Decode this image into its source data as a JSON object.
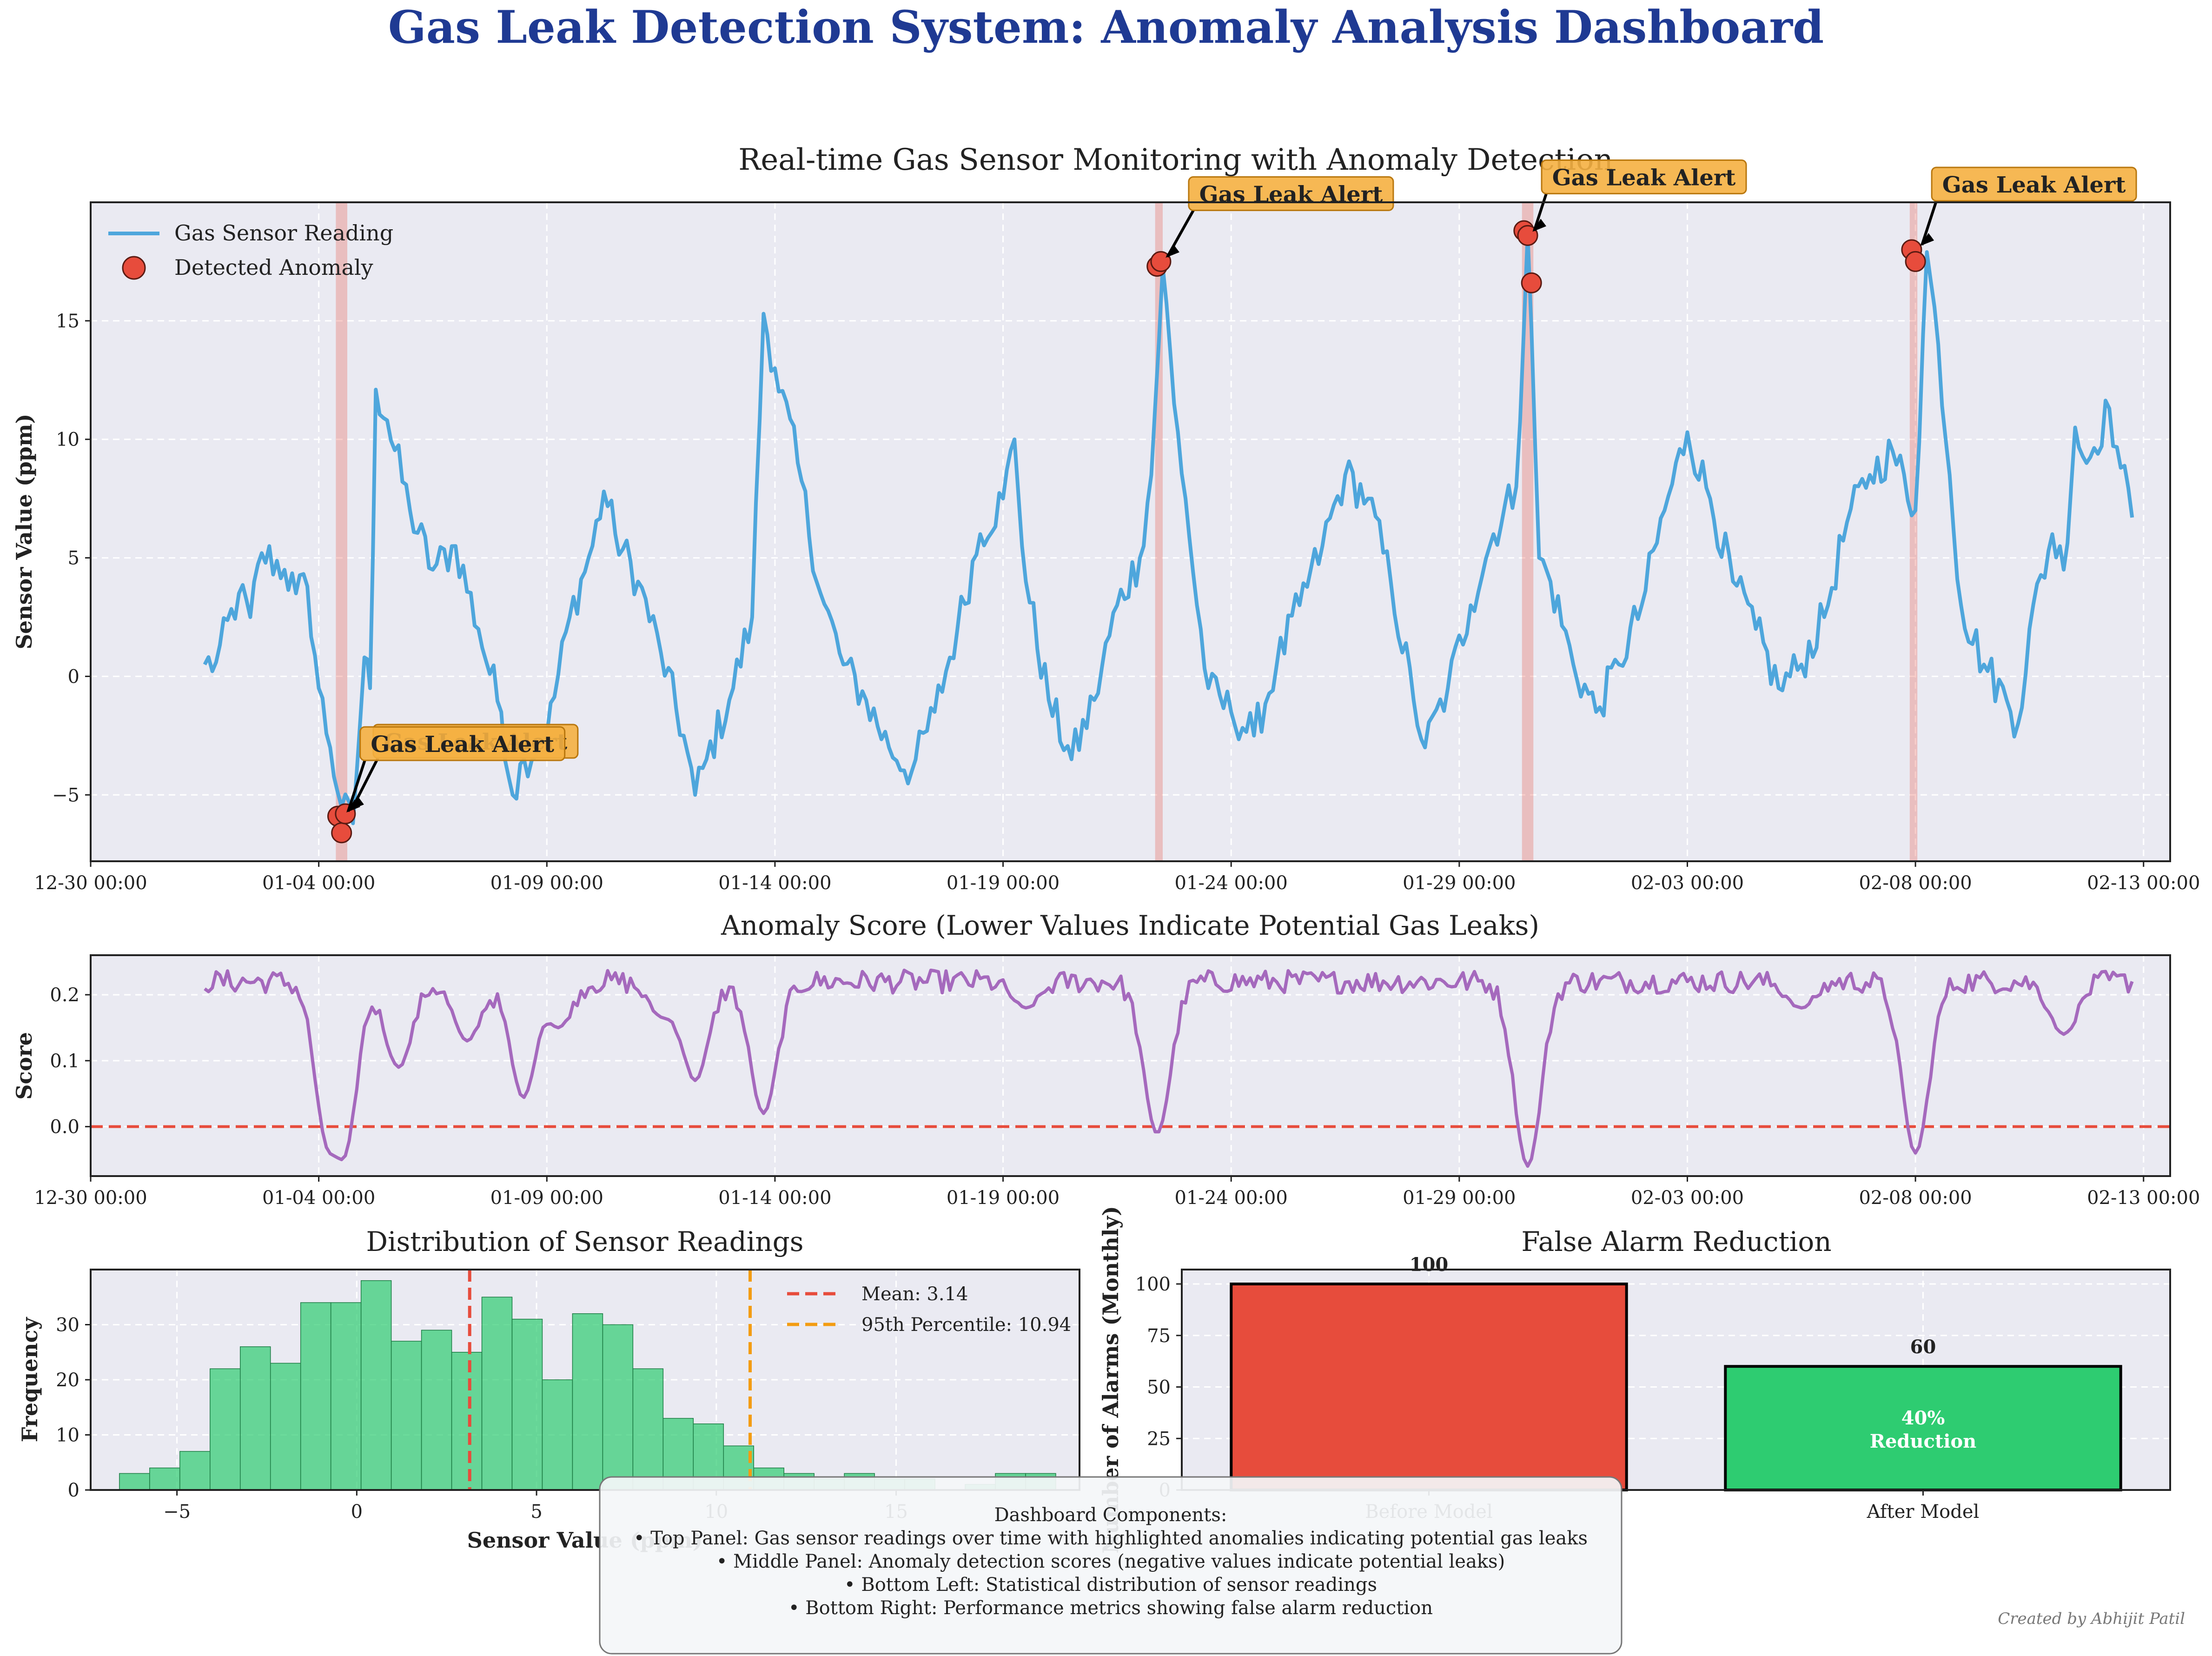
{
  "figure": {
    "suptitle": "Gas Leak Detection System: Anomaly Analysis Dashboard",
    "credit": "Created by Abhijit Patil",
    "title_color": "#1f3a93",
    "info_box": {
      "heading": "Dashboard Components:",
      "lines": [
        "• Top Panel: Gas sensor readings over time with highlighted anomalies indicating potential gas leaks",
        "• Middle Panel: Anomaly detection scores (negative values indicate potential leaks)",
        "• Bottom Left: Statistical distribution of sensor readings",
        "• Bottom Right: Performance metrics showing false alarm reduction"
      ]
    }
  },
  "chart_data": [
    {
      "id": "sensor",
      "type": "line",
      "title": "Real-time Gas Sensor Monitoring with Anomaly Detection",
      "xlabel": "",
      "ylabel": "Sensor Value (ppm)",
      "x_start": "2024-01-01 12:00",
      "x_end": "2024-02-11 12:00",
      "xlim": [
        "12-30 00:00",
        "02-13 14:00"
      ],
      "xticks": [
        "12-30 00:00",
        "01-04 00:00",
        "01-09 00:00",
        "01-14 00:00",
        "01-19 00:00",
        "01-24 00:00",
        "01-29 00:00",
        "02-03 00:00",
        "02-08 00:00",
        "02-13 00:00"
      ],
      "ylim": [
        -7.8,
        20
      ],
      "yticks": [
        -5,
        0,
        5,
        10,
        15
      ],
      "grid": true,
      "legend": {
        "position": "top-left",
        "entries": [
          "Gas Sensor Reading",
          "Detected Anomaly"
        ]
      },
      "series": [
        {
          "name": "Gas Sensor Reading",
          "color": "#4ea6dc",
          "key_points": [
            [
              "01-01 12:00",
              0.5
            ],
            [
              "01-01 18:00",
              0.6
            ],
            [
              "01-02 06:00",
              3.5
            ],
            [
              "01-02 12:00",
              2.5
            ],
            [
              "01-02 18:00",
              5.2
            ],
            [
              "01-03 06:00",
              4.5
            ],
            [
              "01-03 12:00",
              3.5
            ],
            [
              "01-03 18:00",
              3.8
            ],
            [
              "01-04 00:00",
              -0.5
            ],
            [
              "01-04 06:00",
              -3.0
            ],
            [
              "01-04 12:00",
              -5.5
            ],
            [
              "01-04 18:00",
              -6.2
            ],
            [
              "01-05 00:00",
              0.8
            ],
            [
              "01-05 03:00",
              -0.5
            ],
            [
              "01-05 06:00",
              12.1
            ],
            [
              "01-05 12:00",
              10.8
            ],
            [
              "01-06 00:00",
              7.0
            ],
            [
              "01-06 12:00",
              4.5
            ],
            [
              "01-07 00:00",
              5.5
            ],
            [
              "01-07 12:00",
              2.0
            ],
            [
              "01-08 00:00",
              -1.5
            ],
            [
              "01-08 06:00",
              -5.0
            ],
            [
              "01-08 12:00",
              -3.5
            ],
            [
              "01-09 00:00",
              -2.5
            ],
            [
              "01-09 12:00",
              2.5
            ],
            [
              "01-10 00:00",
              5.5
            ],
            [
              "01-10 06:00",
              7.8
            ],
            [
              "01-10 12:00",
              6.0
            ],
            [
              "01-11 00:00",
              4.0
            ],
            [
              "01-11 12:00",
              1.0
            ],
            [
              "01-12 00:00",
              -2.5
            ],
            [
              "01-12 06:00",
              -5.0
            ],
            [
              "01-12 12:00",
              -3.5
            ],
            [
              "01-13 00:00",
              -1.0
            ],
            [
              "01-13 12:00",
              2.5
            ],
            [
              "01-13 18:00",
              15.3
            ],
            [
              "01-14 00:00",
              13.0
            ],
            [
              "01-14 12:00",
              9.0
            ],
            [
              "01-15 00:00",
              3.5
            ],
            [
              "01-15 12:00",
              0.5
            ],
            [
              "01-16 00:00",
              -1.0
            ],
            [
              "01-16 12:00",
              -3.0
            ],
            [
              "01-17 00:00",
              -4.0
            ],
            [
              "01-17 12:00",
              -1.5
            ],
            [
              "01-18 00:00",
              2.0
            ],
            [
              "01-18 12:00",
              6.0
            ],
            [
              "01-19 00:00",
              7.5
            ],
            [
              "01-19 06:00",
              10.0
            ],
            [
              "01-19 12:00",
              4.0
            ],
            [
              "01-20 00:00",
              -1.0
            ],
            [
              "01-20 12:00",
              -3.5
            ],
            [
              "01-21 00:00",
              -1.0
            ],
            [
              "01-21 12:00",
              3.0
            ],
            [
              "01-22 00:00",
              5.0
            ],
            [
              "01-22 06:00",
              8.5
            ],
            [
              "01-22 12:00",
              17.3
            ],
            [
              "01-22 18:00",
              11.5
            ],
            [
              "01-23 00:00",
              7.5
            ],
            [
              "01-23 06:00",
              3.0
            ],
            [
              "01-23 12:00",
              -0.5
            ],
            [
              "01-24 00:00",
              -1.5
            ],
            [
              "01-24 12:00",
              -2.5
            ],
            [
              "01-25 00:00",
              0.5
            ],
            [
              "01-25 12:00",
              3.0
            ],
            [
              "01-26 00:00",
              5.5
            ],
            [
              "01-26 12:00",
              8.5
            ],
            [
              "01-27 00:00",
              7.5
            ],
            [
              "01-27 12:00",
              4.0
            ],
            [
              "01-28 00:00",
              -1.0
            ],
            [
              "01-28 06:00",
              -3.0
            ],
            [
              "01-28 18:00",
              -0.5
            ],
            [
              "01-29 06:00",
              3.0
            ],
            [
              "01-29 18:00",
              6.0
            ],
            [
              "01-30 06:00",
              8.0
            ],
            [
              "01-30 12:00",
              18.7
            ],
            [
              "01-30 18:00",
              5.0
            ],
            [
              "01-31 00:00",
              4.0
            ],
            [
              "01-31 12:00",
              0.5
            ],
            [
              "02-01 00:00",
              -1.5
            ],
            [
              "02-01 12:00",
              0.5
            ],
            [
              "02-02 00:00",
              3.0
            ],
            [
              "02-02 12:00",
              7.0
            ],
            [
              "02-03 00:00",
              10.3
            ],
            [
              "02-03 12:00",
              7.5
            ],
            [
              "02-04 00:00",
              4.0
            ],
            [
              "02-04 12:00",
              2.0
            ],
            [
              "02-05 00:00",
              -0.5
            ],
            [
              "02-05 12:00",
              0.5
            ],
            [
              "02-06 00:00",
              2.5
            ],
            [
              "02-06 12:00",
              6.5
            ],
            [
              "02-07 00:00",
              8.5
            ],
            [
              "02-07 12:00",
              9.5
            ],
            [
              "02-08 00:00",
              7.0
            ],
            [
              "02-08 06:00",
              17.9
            ],
            [
              "02-08 12:00",
              14.0
            ],
            [
              "02-08 18:00",
              8.5
            ],
            [
              "02-09 00:00",
              3.0
            ],
            [
              "02-09 12:00",
              0.5
            ],
            [
              "02-10 00:00",
              -1.0
            ],
            [
              "02-10 06:00",
              -2.0
            ],
            [
              "02-10 12:00",
              2.0
            ],
            [
              "02-11 00:00",
              6.0
            ],
            [
              "02-11 06:00",
              4.5
            ],
            [
              "02-11 12:00",
              10.5
            ],
            [
              "02-11 18:00",
              9.0
            ],
            [
              "02-12 06:00",
              11.3
            ],
            [
              "02-12 12:00",
              8.8
            ],
            [
              "02-12 18:00",
              6.7
            ]
          ]
        },
        {
          "name": "Detected Anomaly",
          "color": "#e74c3c",
          "points": [
            [
              "01-04 10:00",
              -5.9
            ],
            [
              "01-04 12:00",
              -6.6
            ],
            [
              "01-04 14:00",
              -5.8
            ],
            [
              "01-22 09:00",
              17.3
            ],
            [
              "01-22 11:00",
              17.5
            ],
            [
              "01-30 10:00",
              18.8
            ],
            [
              "01-30 12:00",
              18.6
            ],
            [
              "01-30 14:00",
              16.6
            ],
            [
              "02-07 22:00",
              18.0
            ],
            [
              "02-08 00:00",
              17.5
            ]
          ]
        }
      ],
      "highlight_bands": [
        [
          "01-04 09:00",
          "01-04 15:00"
        ],
        [
          "01-22 08:00",
          "01-22 12:00"
        ],
        [
          "01-30 09:00",
          "01-30 15:00"
        ],
        [
          "02-07 21:00",
          "02-08 01:00"
        ]
      ],
      "annotations": [
        {
          "text": "Gas Leak Alert",
          "at": [
            "01-04 14:00",
            -5.8
          ]
        },
        {
          "text": "Gas Leak Alert",
          "at": [
            "01-04 12:00",
            -5.9
          ]
        },
        {
          "text": "Gas Leak Alert",
          "at": [
            "01-22 11:00",
            17.5
          ]
        },
        {
          "text": "Gas Leak Alert",
          "at": [
            "01-30 12:00",
            18.6
          ]
        },
        {
          "text": "Gas Leak Alert",
          "at": [
            "02-08 00:00",
            18.0
          ]
        }
      ]
    },
    {
      "id": "score",
      "type": "line",
      "title": "Anomaly Score (Lower Values Indicate Potential Gas Leaks)",
      "xlabel": "",
      "ylabel": "Score",
      "xlim": [
        "12-30 00:00",
        "02-13 14:00"
      ],
      "xticks": [
        "12-30 00:00",
        "01-04 00:00",
        "01-09 00:00",
        "01-14 00:00",
        "01-19 00:00",
        "01-24 00:00",
        "01-29 00:00",
        "02-03 00:00",
        "02-08 00:00",
        "02-13 00:00"
      ],
      "ylim": [
        -0.075,
        0.26
      ],
      "yticks": [
        0.0,
        0.1,
        0.2
      ],
      "threshold": 0.0,
      "grid": true,
      "series": [
        {
          "name": "Anomaly Score",
          "color": "#a569bd",
          "dips": [
            [
              "01-04 06:00",
              -0.02
            ],
            [
              "01-04 12:00",
              -0.05
            ],
            [
              "01-05 18:00",
              0.09
            ],
            [
              "01-07 06:00",
              0.13
            ],
            [
              "01-08 12:00",
              0.04
            ],
            [
              "01-09 06:00",
              0.15
            ],
            [
              "01-11 12:00",
              0.17
            ],
            [
              "01-12 06:00",
              0.07
            ],
            [
              "01-13 18:00",
              0.02
            ],
            [
              "01-19 12:00",
              0.18
            ],
            [
              "01-22 09:00",
              -0.01
            ],
            [
              "01-30 12:00",
              -0.06
            ],
            [
              "02-05 12:00",
              0.18
            ],
            [
              "02-08 00:00",
              -0.04
            ],
            [
              "02-11 06:00",
              0.14
            ]
          ]
        }
      ]
    },
    {
      "id": "histogram",
      "type": "bar",
      "title": "Distribution of Sensor Readings",
      "xlabel": "Sensor Value (ppm)",
      "ylabel": "Frequency",
      "xlim": [
        -7.4,
        20.1
      ],
      "ylim": [
        0,
        40
      ],
      "xticks": [
        -5,
        0,
        5,
        10,
        15
      ],
      "yticks": [
        0,
        10,
        20,
        30
      ],
      "bin_start": -6.6,
      "bin_width": 0.84,
      "counts": [
        3,
        4,
        7,
        22,
        26,
        23,
        34,
        34,
        38,
        27,
        29,
        25,
        35,
        31,
        20,
        32,
        30,
        22,
        13,
        12,
        8,
        4,
        3,
        2,
        3,
        2,
        2,
        0,
        1,
        3,
        3,
        0
      ],
      "color": "#2ecc71",
      "mean": 3.14,
      "p95": 10.94,
      "legend": {
        "position": "top-right",
        "entries": [
          "Mean: 3.14",
          "95th Percentile: 10.94"
        ]
      }
    },
    {
      "id": "alarms",
      "type": "bar",
      "title": "False Alarm Reduction",
      "ylabel": "Number of Alarms (Monthly)",
      "categories": [
        "Before Model",
        "After Model"
      ],
      "values": [
        100,
        60
      ],
      "value_labels": [
        "100",
        "60"
      ],
      "colors": [
        "#e74c3c",
        "#2ecc71"
      ],
      "ylim": [
        0,
        107
      ],
      "yticks": [
        0,
        25,
        50,
        75,
        100
      ],
      "inner_label": [
        "40%",
        "Reduction"
      ]
    }
  ]
}
